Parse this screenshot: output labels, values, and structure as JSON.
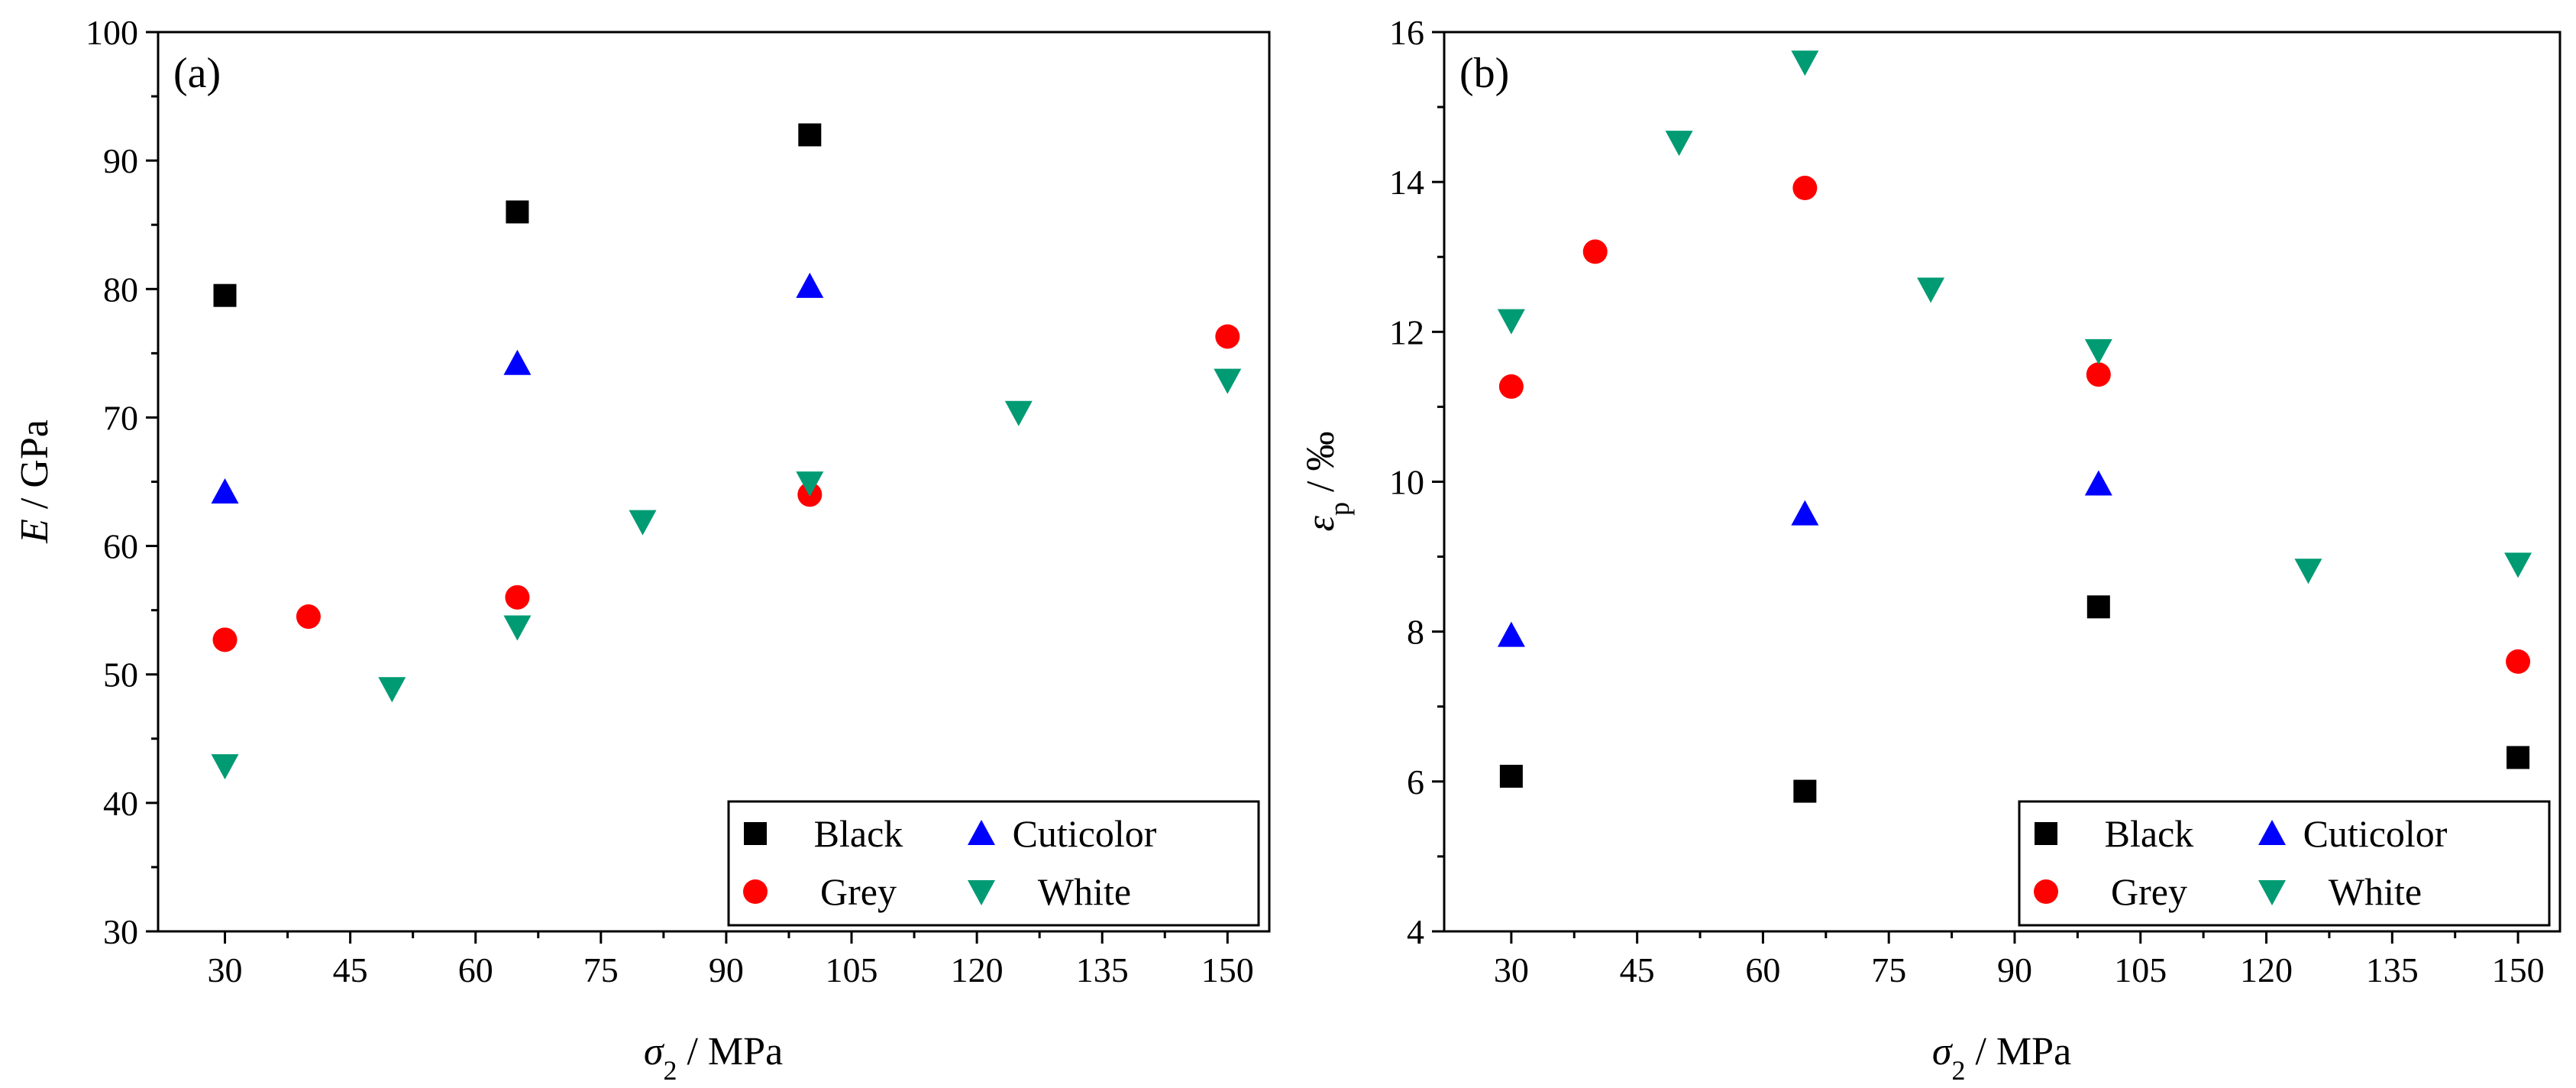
{
  "series_style": {
    "Black": {
      "marker": "square",
      "color": "#000000"
    },
    "Grey": {
      "marker": "circle",
      "color": "#ff0000"
    },
    "Cuticolor": {
      "marker": "triangle-up",
      "color": "#0000ff"
    },
    "White": {
      "marker": "triangle-down",
      "color": "#009b73"
    }
  },
  "chart_data": [
    {
      "type": "scatter",
      "panel_label": "(a)",
      "xlabel_symbol": "σ",
      "xlabel_sub": "2",
      "xlabel_unit": " / MPa",
      "ylabel_symbol": "E",
      "ylabel_sub": "",
      "ylabel_unit": " / GPa",
      "xlim": [
        22,
        155
      ],
      "ylim": [
        30,
        100
      ],
      "xticks": [
        30,
        45,
        60,
        75,
        90,
        105,
        120,
        135,
        150
      ],
      "yticks": [
        30,
        40,
        50,
        60,
        70,
        80,
        90,
        100
      ],
      "legend_position": "bottom-right",
      "series": [
        {
          "name": "Black",
          "points": [
            [
              30,
              79.5
            ],
            [
              65,
              86
            ],
            [
              100,
              92
            ]
          ]
        },
        {
          "name": "Grey",
          "points": [
            [
              30,
              52.7
            ],
            [
              40,
              54.5
            ],
            [
              65,
              56
            ],
            [
              100,
              64
            ],
            [
              150,
              76.3
            ]
          ]
        },
        {
          "name": "Cuticolor",
          "points": [
            [
              30,
              64.2
            ],
            [
              65,
              74.2
            ],
            [
              100,
              80.2
            ]
          ]
        },
        {
          "name": "White",
          "points": [
            [
              30,
              42.9
            ],
            [
              50,
              48.9
            ],
            [
              65,
              53.7
            ],
            [
              80,
              61.9
            ],
            [
              100,
              64.9
            ],
            [
              125,
              70.4
            ],
            [
              150,
              72.9
            ]
          ]
        }
      ]
    },
    {
      "type": "scatter",
      "panel_label": "(b)",
      "xlabel_symbol": "σ",
      "xlabel_sub": "2",
      "xlabel_unit": " / MPa",
      "ylabel_symbol": "ε",
      "ylabel_sub": "p",
      "ylabel_unit": " / ‰",
      "xlim": [
        22,
        155
      ],
      "ylim": [
        4,
        16
      ],
      "xticks": [
        30,
        45,
        60,
        75,
        90,
        105,
        120,
        135,
        150
      ],
      "yticks": [
        4,
        6,
        8,
        10,
        12,
        14,
        16
      ],
      "legend_position": "bottom-right",
      "series": [
        {
          "name": "Black",
          "points": [
            [
              30,
              6.07
            ],
            [
              65,
              5.87
            ],
            [
              100,
              8.33
            ],
            [
              150,
              6.32
            ]
          ]
        },
        {
          "name": "Grey",
          "points": [
            [
              30,
              11.27
            ],
            [
              40,
              13.07
            ],
            [
              65,
              13.92
            ],
            [
              100,
              11.43
            ],
            [
              150,
              7.6
            ]
          ]
        },
        {
          "name": "Cuticolor",
          "points": [
            [
              30,
              7.95
            ],
            [
              65,
              9.57
            ],
            [
              100,
              9.97
            ]
          ]
        },
        {
          "name": "White",
          "points": [
            [
              30,
              12.15
            ],
            [
              50,
              14.53
            ],
            [
              65,
              15.6
            ],
            [
              80,
              12.57
            ],
            [
              100,
              11.75
            ],
            [
              125,
              8.82
            ],
            [
              150,
              8.9
            ]
          ]
        }
      ]
    }
  ]
}
